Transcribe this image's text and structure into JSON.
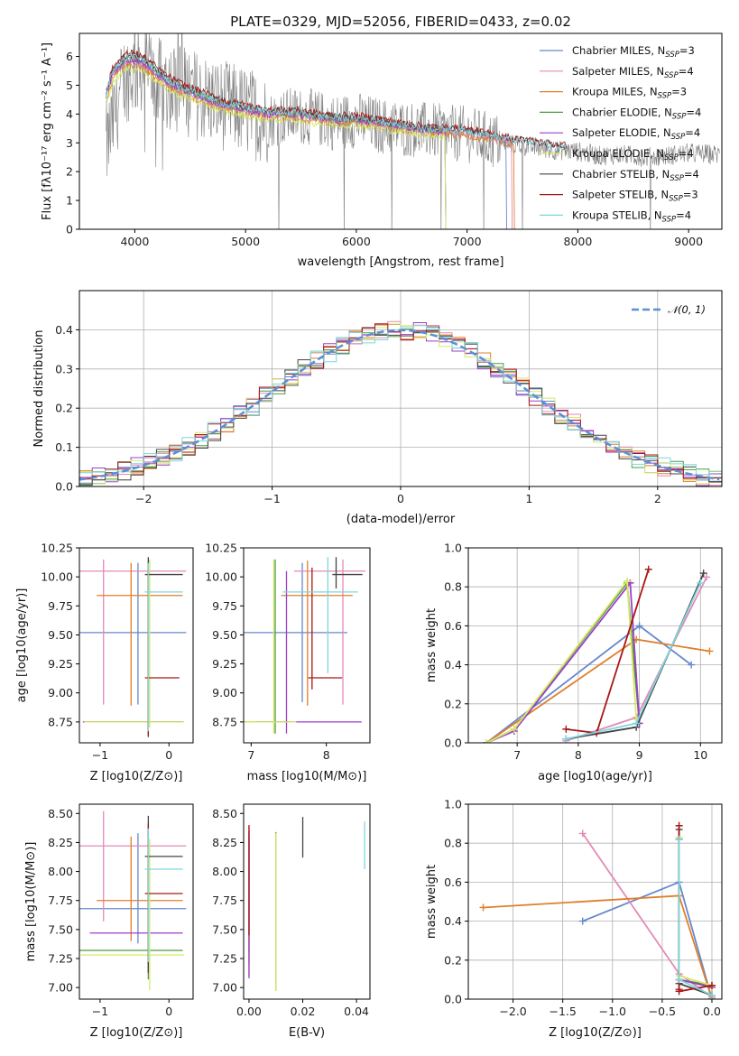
{
  "figure": {
    "title": "PLATE=0329, MJD=52056, FIBERID=0433, z=0.02"
  },
  "chart_data": [
    {
      "id": "spectrum",
      "type": "line",
      "xlabel": "wavelength [Angstrom, rest frame]",
      "ylabel": "Flux [fλ10⁻¹⁷ erg cm⁻² s⁻¹ A⁻¹]",
      "xlim": [
        3500,
        9300
      ],
      "ylim": [
        0,
        6.8
      ],
      "xticks": [
        4000,
        5000,
        6000,
        7000,
        8000,
        9000
      ],
      "yticks": [
        0,
        1,
        2,
        3,
        4,
        5,
        6
      ],
      "data_color": "#808080",
      "data_x": [
        3750,
        3900,
        4000,
        4100,
        4200,
        4400,
        4600,
        4800,
        5000,
        5200,
        5400,
        5600,
        5800,
        6000,
        6200,
        6400,
        6600,
        6800,
        7000,
        7200,
        7400,
        7600,
        7800,
        8000,
        8200,
        8400,
        8600,
        8800,
        9000,
        9200
      ],
      "data_y": [
        2.9,
        5.2,
        5.5,
        5.7,
        5.1,
        4.9,
        4.6,
        4.3,
        4.1,
        3.8,
        3.95,
        3.9,
        3.7,
        3.8,
        3.6,
        3.5,
        3.45,
        3.35,
        3.3,
        3.1,
        2.95,
        2.85,
        2.75,
        2.7,
        2.55,
        2.6,
        2.5,
        2.55,
        2.65,
        2.6
      ],
      "model_x": [
        3740,
        3800,
        3900,
        4000,
        4100,
        4200,
        4300,
        4400,
        4600,
        4800,
        5000,
        5200,
        5400,
        5600,
        5800,
        6000,
        6200,
        6400,
        6600,
        6800,
        7000,
        7200,
        7400,
        7600,
        7800,
        7900
      ],
      "series": [
        {
          "name": "Chabrier MILES, N_SSP=3",
          "color": "#6688cc",
          "scale": 1.0,
          "end_x": 7350
        },
        {
          "name": "Salpeter MILES, N_SSP=4",
          "color": "#e48ab6",
          "scale": 0.99,
          "end_x": 7400
        },
        {
          "name": "Kroupa MILES, N_SSP=3",
          "color": "#e07f2a",
          "scale": 0.97,
          "end_x": 7420
        },
        {
          "name": "Chabrier ELODIE, N_SSP=4",
          "color": "#4c9a3e",
          "scale": 1.01,
          "end_x": 6800
        },
        {
          "name": "Salpeter ELODIE, N_SSP=4",
          "color": "#9b3fc8",
          "scale": 1.0,
          "end_x": 6800
        },
        {
          "name": "Kroupa ELODIE, N_SSP=4",
          "color": "#d8e86a",
          "scale": 0.95,
          "end_x": 6800
        },
        {
          "name": "Chabrier STELIB, N_SSP=4",
          "color": "#444444",
          "scale": 1.03,
          "end_x": 7900
        },
        {
          "name": "Salpeter STELIB, N_SSP=3",
          "color": "#aa1616",
          "scale": 1.04,
          "end_x": 7900
        },
        {
          "name": "Kroupa STELIB, N_SSP=4",
          "color": "#7ed6dc",
          "scale": 1.02,
          "end_x": 7900
        }
      ],
      "model_y": [
        4.6,
        5.4,
        5.8,
        5.9,
        5.7,
        5.4,
        5.1,
        4.9,
        4.6,
        4.3,
        4.15,
        4.0,
        4.0,
        3.9,
        3.8,
        3.8,
        3.7,
        3.55,
        3.45,
        3.4,
        3.35,
        3.2,
        3.05,
        2.95,
        2.85,
        2.8
      ],
      "legend": [
        {
          "base": "Chabrier MILES, N",
          "sub": "SSP",
          "tail": "=3"
        },
        {
          "base": "Salpeter MILES, N",
          "sub": "SSP",
          "tail": "=4"
        },
        {
          "base": "Kroupa MILES, N",
          "sub": "SSP",
          "tail": "=3"
        },
        {
          "base": "Chabrier ELODIE, N",
          "sub": "SSP",
          "tail": "=4"
        },
        {
          "base": "Salpeter ELODIE, N",
          "sub": "SSP",
          "tail": "=4"
        },
        {
          "base": "Kroupa ELODIE, N",
          "sub": "SSP",
          "tail": "=4"
        },
        {
          "base": "Chabrier STELIB, N",
          "sub": "SSP",
          "tail": "=4"
        },
        {
          "base": "Salpeter STELIB, N",
          "sub": "SSP",
          "tail": "=3"
        },
        {
          "base": "Kroupa STELIB, N",
          "sub": "SSP",
          "tail": "=4"
        }
      ]
    },
    {
      "id": "residuals",
      "type": "line",
      "xlabel": "(data-model)/error",
      "ylabel": "Normed distribution",
      "xlim": [
        -2.5,
        2.5
      ],
      "ylim": [
        0,
        0.5
      ],
      "xticks": [
        -2,
        -1,
        0,
        1,
        2
      ],
      "yticks": [
        0.0,
        0.1,
        0.2,
        0.3,
        0.4
      ],
      "grid": true,
      "gauss_label": "𝒩(0, 1)",
      "gauss_color": "#5b8fd6",
      "bin_width": 0.1
    },
    {
      "id": "age_vs_Z",
      "type": "scatter",
      "xlabel": "Z [log10(Z/Z⊙)]",
      "ylabel": "age [log10(age/yr)]",
      "xlim": [
        -1.3,
        0.35
      ],
      "ylim": [
        8.57,
        10.25
      ],
      "xticks": [
        -1,
        0
      ],
      "yticks": [
        8.75,
        9.0,
        9.25,
        9.5,
        9.75,
        10.0,
        10.25
      ],
      "points": [
        {
          "color": "#6688cc",
          "x": -0.45,
          "xerr": [
            0.85,
            0.7
          ],
          "y": 9.52,
          "yerr": [
            0.62,
            0.6
          ]
        },
        {
          "color": "#e48ab6",
          "x": -0.95,
          "xerr": [
            0.35,
            1.2
          ],
          "y": 10.05,
          "yerr": [
            1.15,
            0.1
          ]
        },
        {
          "color": "#e07f2a",
          "x": -0.55,
          "xerr": [
            0.5,
            0.75
          ],
          "y": 9.84,
          "yerr": [
            0.95,
            0.28
          ]
        },
        {
          "color": "#4c9a3e",
          "x": -0.3,
          "xerr": [
            0.9,
            0.5
          ],
          "y": 8.75,
          "yerr": [
            0.05,
            1.4
          ]
        },
        {
          "color": "#9b3fc8",
          "x": -0.3,
          "xerr": [
            0.95,
            0.5
          ],
          "y": 8.75,
          "yerr": [
            0.05,
            1.3
          ]
        },
        {
          "color": "#d8e86a",
          "x": -0.28,
          "xerr": [
            0.95,
            0.5
          ],
          "y": 8.75,
          "yerr": [
            0.05,
            1.4
          ]
        },
        {
          "color": "#444444",
          "x": -0.3,
          "xerr": [
            0.05,
            0.5
          ],
          "y": 10.02,
          "yerr": [
            1.4,
            0.15
          ]
        },
        {
          "color": "#aa1616",
          "x": -0.3,
          "xerr": [
            0.05,
            0.45
          ],
          "y": 9.13,
          "yerr": [
            0.5,
            0.95
          ]
        },
        {
          "color": "#7ed6dc",
          "x": -0.3,
          "xerr": [
            0.05,
            0.5
          ],
          "y": 9.87,
          "yerr": [
            1.2,
            0.25
          ]
        }
      ]
    },
    {
      "id": "age_vs_mass",
      "type": "scatter",
      "xlabel": "mass [log10(M/M⊙)]",
      "ylabel": "",
      "xlim": [
        6.9,
        8.58
      ],
      "ylim": [
        8.57,
        10.25
      ],
      "xticks": [
        7,
        8
      ],
      "yticks": [
        8.75,
        9.0,
        9.25,
        9.5,
        9.75,
        10.0,
        10.25
      ],
      "points": [
        {
          "color": "#6688cc",
          "x": 7.68,
          "xerr": [
            0.8,
            0.6
          ],
          "y": 9.52,
          "yerr": [
            0.6,
            0.6
          ]
        },
        {
          "color": "#e48ab6",
          "x": 8.22,
          "xerr": [
            0.65,
            0.3
          ],
          "y": 10.05,
          "yerr": [
            1.15,
            0.1
          ]
        },
        {
          "color": "#e07f2a",
          "x": 7.75,
          "xerr": [
            0.35,
            0.6
          ],
          "y": 9.84,
          "yerr": [
            0.95,
            0.3
          ]
        },
        {
          "color": "#4c9a3e",
          "x": 7.32,
          "xerr": [
            0.6,
            0.2
          ],
          "y": 8.75,
          "yerr": [
            0.1,
            1.4
          ]
        },
        {
          "color": "#9b3fc8",
          "x": 7.47,
          "xerr": [
            0.4,
            1.0
          ],
          "y": 8.75,
          "yerr": [
            0.1,
            1.3
          ]
        },
        {
          "color": "#d8e86a",
          "x": 7.3,
          "xerr": [
            0.6,
            0.3
          ],
          "y": 8.75,
          "yerr": [
            0.1,
            1.4
          ]
        },
        {
          "color": "#444444",
          "x": 8.13,
          "xerr": [
            0.05,
            0.35
          ],
          "y": 10.02,
          "yerr": [
            0.12,
            0.15
          ]
        },
        {
          "color": "#aa1616",
          "x": 7.81,
          "xerr": [
            0.05,
            0.4
          ],
          "y": 9.13,
          "yerr": [
            0.1,
            0.95
          ]
        },
        {
          "color": "#7ed6dc",
          "x": 8.02,
          "xerr": [
            0.6,
            0.4
          ],
          "y": 9.87,
          "yerr": [
            0.7,
            0.3
          ]
        }
      ]
    },
    {
      "id": "mass_weight_vs_age",
      "type": "line",
      "xlabel": "age [log10(age/yr)]",
      "ylabel": "mass weight",
      "xlim": [
        6.2,
        10.35
      ],
      "ylim": [
        0,
        1
      ],
      "xticks": [
        7,
        8,
        9,
        10
      ],
      "yticks": [
        0.0,
        0.2,
        0.4,
        0.6,
        0.8,
        1.0
      ],
      "grid": true,
      "series": [
        {
          "color": "#6688cc",
          "x": [
            6.5,
            9.0,
            9.85
          ],
          "y": [
            0.0,
            0.6,
            0.4
          ]
        },
        {
          "color": "#e48ab6",
          "x": [
            7.8,
            8.95,
            10.1
          ],
          "y": [
            0.01,
            0.13,
            0.85
          ]
        },
        {
          "color": "#e07f2a",
          "x": [
            6.5,
            8.95,
            10.15
          ],
          "y": [
            0.0,
            0.53,
            0.47
          ]
        },
        {
          "color": "#4c9a3e",
          "x": [
            6.5,
            6.95,
            8.8,
            9.0
          ],
          "y": [
            0.0,
            0.07,
            0.82,
            0.1
          ]
        },
        {
          "color": "#9b3fc8",
          "x": [
            6.5,
            6.95,
            8.85,
            9.0
          ],
          "y": [
            0.0,
            0.06,
            0.82,
            0.1
          ]
        },
        {
          "color": "#d8e86a",
          "x": [
            6.5,
            6.95,
            8.8,
            8.95
          ],
          "y": [
            0.0,
            0.07,
            0.83,
            0.12
          ]
        },
        {
          "color": "#444444",
          "x": [
            7.8,
            8.95,
            10.05
          ],
          "y": [
            0.02,
            0.08,
            0.87
          ]
        },
        {
          "color": "#aa1616",
          "x": [
            7.8,
            8.3,
            9.15
          ],
          "y": [
            0.07,
            0.05,
            0.89
          ]
        },
        {
          "color": "#7ed6dc",
          "x": [
            7.8,
            8.95,
            10.0
          ],
          "y": [
            0.02,
            0.1,
            0.82
          ]
        }
      ]
    },
    {
      "id": "mass_vs_Z",
      "type": "scatter",
      "xlabel": "Z [log10(Z/Z⊙)]",
      "ylabel": "mass [log10(M/M⊙)]",
      "xlim": [
        -1.3,
        0.35
      ],
      "ylim": [
        6.9,
        8.58
      ],
      "xticks": [
        -1,
        0
      ],
      "yticks": [
        7.0,
        7.25,
        7.5,
        7.75,
        8.0,
        8.25,
        8.5
      ],
      "points": [
        {
          "color": "#6688cc",
          "x": -0.45,
          "xerr": [
            0.85,
            0.7
          ],
          "y": 7.68,
          "yerr": [
            0.3,
            0.65
          ]
        },
        {
          "color": "#e48ab6",
          "x": -0.95,
          "xerr": [
            0.35,
            1.2
          ],
          "y": 8.22,
          "yerr": [
            0.65,
            0.3
          ]
        },
        {
          "color": "#e07f2a",
          "x": -0.55,
          "xerr": [
            0.5,
            0.75
          ],
          "y": 7.75,
          "yerr": [
            0.35,
            0.55
          ]
        },
        {
          "color": "#4c9a3e",
          "x": -0.3,
          "xerr": [
            1.0,
            0.5
          ],
          "y": 7.32,
          "yerr": [
            0.25,
            1.1
          ]
        },
        {
          "color": "#9b3fc8",
          "x": -0.3,
          "xerr": [
            0.85,
            0.5
          ],
          "y": 7.47,
          "yerr": [
            0.35,
            0.9
          ]
        },
        {
          "color": "#d8e86a",
          "x": -0.28,
          "xerr": [
            1.0,
            0.5
          ],
          "y": 7.28,
          "yerr": [
            0.3,
            1.0
          ]
        },
        {
          "color": "#444444",
          "x": -0.3,
          "xerr": [
            0.05,
            0.5
          ],
          "y": 8.13,
          "yerr": [
            1.0,
            0.35
          ]
        },
        {
          "color": "#aa1616",
          "x": -0.3,
          "xerr": [
            0.05,
            0.5
          ],
          "y": 7.81,
          "yerr": [
            0.6,
            0.6
          ]
        },
        {
          "color": "#7ed6dc",
          "x": -0.3,
          "xerr": [
            0.05,
            0.5
          ],
          "y": 8.02,
          "yerr": [
            0.8,
            0.35
          ]
        }
      ]
    },
    {
      "id": "mass_vs_ebv",
      "type": "scatter",
      "xlabel": "E(B-V)",
      "ylabel": "",
      "xlim": [
        -0.002,
        0.045
      ],
      "ylim": [
        6.9,
        8.58
      ],
      "xticks": [
        0.0,
        0.02,
        0.04
      ],
      "yticks": [
        7.0,
        7.25,
        7.5,
        7.75,
        8.0,
        8.25,
        8.5
      ],
      "points": [
        {
          "color": "#6688cc",
          "x": 0.0,
          "yrange": [
            7.3,
            8.35
          ]
        },
        {
          "color": "#e48ab6",
          "x": 0.0,
          "yrange": [
            7.1,
            8.4
          ]
        },
        {
          "color": "#e07f2a",
          "x": 0.0,
          "yrange": [
            7.2,
            8.3
          ]
        },
        {
          "color": "#4c9a3e",
          "x": 0.01,
          "yrange": [
            6.97,
            8.34
          ]
        },
        {
          "color": "#9b3fc8",
          "x": 0.0,
          "yrange": [
            7.08,
            8.35
          ]
        },
        {
          "color": "#d8e86a",
          "x": 0.01,
          "yrange": [
            6.97,
            8.33
          ]
        },
        {
          "color": "#444444",
          "x": 0.02,
          "yrange": [
            8.12,
            8.47
          ]
        },
        {
          "color": "#aa1616",
          "x": 0.0,
          "yrange": [
            7.45,
            8.4
          ]
        },
        {
          "color": "#7ed6dc",
          "x": 0.043,
          "yrange": [
            8.02,
            8.43
          ]
        }
      ]
    },
    {
      "id": "mass_weight_vs_Z",
      "type": "line",
      "xlabel": "Z [log10(Z/Z⊙)]",
      "ylabel": "mass weight",
      "xlim": [
        -2.45,
        0.1
      ],
      "ylim": [
        0,
        1
      ],
      "xticks": [
        -2.0,
        -1.5,
        -1.0,
        -0.5,
        0.0
      ],
      "yticks": [
        0.0,
        0.2,
        0.4,
        0.6,
        0.8,
        1.0
      ],
      "grid": true,
      "series": [
        {
          "color": "#6688cc",
          "x": [
            -1.3,
            -0.33,
            0.0
          ],
          "y": [
            0.4,
            0.6,
            0.0
          ]
        },
        {
          "color": "#e48ab6",
          "x": [
            -1.3,
            -0.33,
            0.0
          ],
          "y": [
            0.85,
            0.13,
            0.01
          ]
        },
        {
          "color": "#e07f2a",
          "x": [
            -2.3,
            -0.33,
            0.0
          ],
          "y": [
            0.47,
            0.53,
            0.0
          ]
        },
        {
          "color": "#4c9a3e",
          "x": [
            -0.33,
            -0.33,
            0.0,
            0.0
          ],
          "y": [
            0.82,
            0.1,
            0.07,
            0.0
          ]
        },
        {
          "color": "#9b3fc8",
          "x": [
            -0.33,
            -0.33,
            0.0,
            0.0
          ],
          "y": [
            0.82,
            0.1,
            0.06,
            0.0
          ]
        },
        {
          "color": "#d8e86a",
          "x": [
            -0.33,
            -0.33,
            0.0,
            0.0
          ],
          "y": [
            0.83,
            0.12,
            0.07,
            0.0
          ]
        },
        {
          "color": "#444444",
          "x": [
            -0.33,
            -0.33,
            0.0
          ],
          "y": [
            0.87,
            0.08,
            0.02
          ]
        },
        {
          "color": "#aa1616",
          "x": [
            -0.33,
            -0.33,
            -0.33,
            0.0
          ],
          "y": [
            0.89,
            0.05,
            0.04,
            0.07
          ]
        },
        {
          "color": "#7ed6dc",
          "x": [
            -0.33,
            -0.33,
            0.0
          ],
          "y": [
            0.82,
            0.1,
            0.02
          ]
        }
      ]
    }
  ]
}
